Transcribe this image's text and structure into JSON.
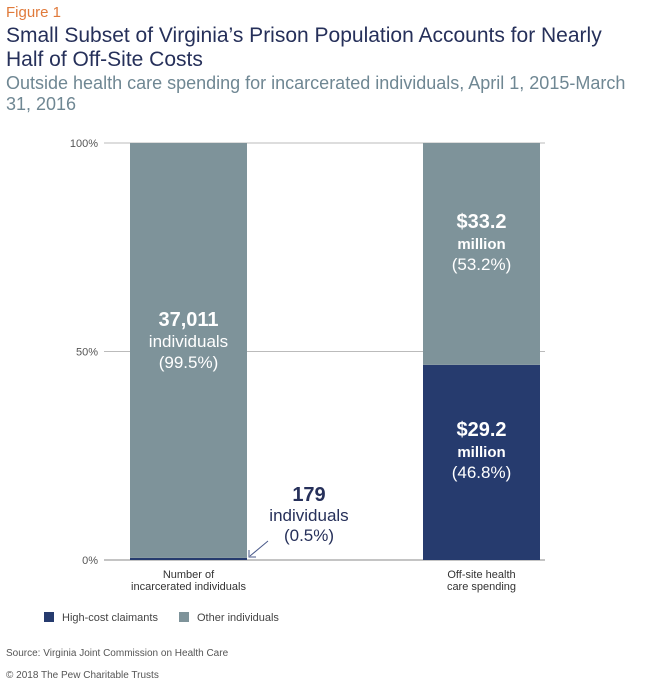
{
  "figure_label": "Figure 1",
  "title": "Small Subset of Virginia’s Prison Population Accounts for Nearly Half of Off-Site Costs",
  "subtitle": "Outside health care spending for incarcerated individuals, April 1, 2015-March 31, 2016",
  "colors": {
    "high_cost": "#263b6e",
    "other": "#7e939a",
    "title": "#26305a",
    "figure_label": "#e07a3b",
    "subtitle": "#6f8793"
  },
  "chart_data": {
    "type": "bar",
    "stacked": true,
    "categories": [
      "Number of incarcerated individuals",
      "Off-site health care spending"
    ],
    "category_label_lines": [
      [
        "Number of",
        "incarcerated individuals"
      ],
      [
        "Off-site health",
        "care spending"
      ]
    ],
    "series": [
      {
        "name": "High-cost claimants",
        "values": [
          0.5,
          46.8
        ],
        "labels": [
          [
            "179",
            "individuals",
            "(0.5%)"
          ],
          [
            "$29.2",
            "million",
            "(46.8%)"
          ]
        ]
      },
      {
        "name": "Other individuals",
        "values": [
          99.5,
          53.2
        ],
        "labels": [
          [
            "37,011",
            "individuals",
            "(99.5%)"
          ],
          [
            "$33.2",
            "million",
            "(53.2%)"
          ]
        ]
      }
    ],
    "yticks": [
      "0%",
      "50%",
      "100%"
    ],
    "ylim": [
      0,
      100
    ],
    "grid": true,
    "legend_position": "bottom-left"
  },
  "legend": [
    {
      "label": "High-cost claimants",
      "color": "#263b6e"
    },
    {
      "label": "Other individuals",
      "color": "#7e939a"
    }
  ],
  "source": "Source: Virginia Joint Commission on Health Care",
  "copyright": "© 2018 The Pew Charitable Trusts"
}
